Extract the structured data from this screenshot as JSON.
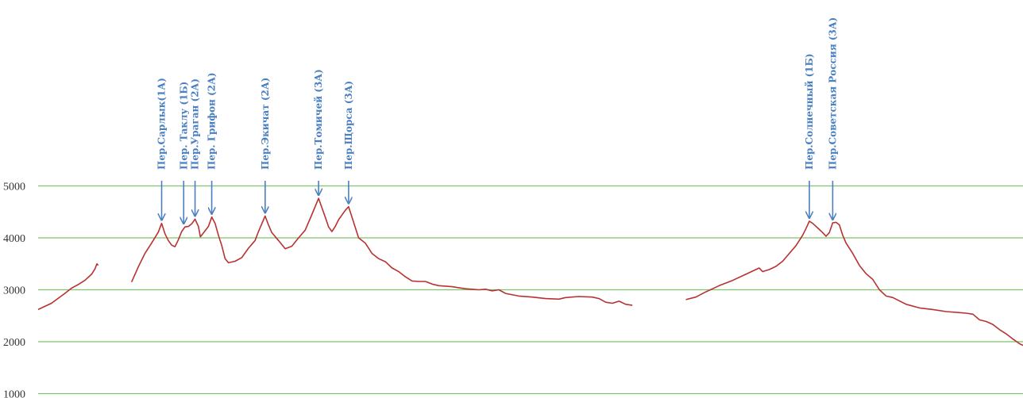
{
  "chart_data": {
    "type": "line",
    "title": "",
    "xlabel": "",
    "ylabel": "",
    "ylim": [
      1000,
      5000
    ],
    "grid": true,
    "legend": "none",
    "y_ticks": [
      "5000",
      "4000",
      "3000",
      "2000",
      "1000"
    ],
    "grid_color": "#7dc36b",
    "line_color": "#b83232",
    "annotation_color": "#4a7fc0",
    "series": [
      {
        "segments": [
          [
            [
              0,
              2620
            ],
            [
              20,
              2740
            ],
            [
              40,
              2930
            ],
            [
              50,
              3030
            ],
            [
              60,
              3100
            ],
            [
              70,
              3180
            ],
            [
              80,
              3300
            ],
            [
              85,
              3400
            ],
            [
              88,
              3500
            ],
            [
              90,
              3470
            ]
          ],
          [
            [
              140,
              3150
            ],
            [
              150,
              3440
            ],
            [
              160,
              3700
            ],
            [
              170,
              3900
            ],
            [
              180,
              4110
            ],
            [
              185,
              4280
            ],
            [
              190,
              4080
            ],
            [
              195,
              3950
            ],
            [
              200,
              3860
            ],
            [
              205,
              3830
            ],
            [
              210,
              3960
            ],
            [
              215,
              4120
            ],
            [
              220,
              4210
            ],
            [
              225,
              4220
            ],
            [
              230,
              4270
            ],
            [
              235,
              4360
            ],
            [
              240,
              4220
            ],
            [
              243,
              4020
            ],
            [
              248,
              4100
            ],
            [
              255,
              4220
            ],
            [
              260,
              4400
            ],
            [
              265,
              4280
            ],
            [
              270,
              4050
            ],
            [
              275,
              3850
            ],
            [
              280,
              3600
            ],
            [
              285,
              3520
            ],
            [
              295,
              3550
            ],
            [
              305,
              3620
            ],
            [
              315,
              3800
            ],
            [
              325,
              3950
            ],
            [
              330,
              4120
            ],
            [
              335,
              4270
            ],
            [
              340,
              4420
            ],
            [
              345,
              4250
            ],
            [
              350,
              4100
            ],
            [
              360,
              3950
            ],
            [
              370,
              3790
            ],
            [
              380,
              3840
            ],
            [
              390,
              4000
            ],
            [
              400,
              4150
            ],
            [
              410,
              4450
            ],
            [
              420,
              4760
            ],
            [
              425,
              4580
            ],
            [
              430,
              4400
            ],
            [
              435,
              4210
            ],
            [
              440,
              4120
            ],
            [
              445,
              4220
            ],
            [
              450,
              4350
            ],
            [
              460,
              4530
            ],
            [
              465,
              4600
            ],
            [
              470,
              4400
            ],
            [
              475,
              4200
            ],
            [
              480,
              4000
            ],
            [
              490,
              3900
            ],
            [
              500,
              3700
            ],
            [
              510,
              3600
            ],
            [
              520,
              3540
            ],
            [
              530,
              3420
            ],
            [
              540,
              3350
            ],
            [
              550,
              3250
            ],
            [
              560,
              3170
            ],
            [
              570,
              3160
            ],
            [
              580,
              3160
            ],
            [
              590,
              3110
            ],
            [
              600,
              3080
            ],
            [
              610,
              3070
            ],
            [
              620,
              3060
            ],
            [
              630,
              3040
            ],
            [
              640,
              3020
            ],
            [
              650,
              3010
            ],
            [
              660,
              3000
            ],
            [
              670,
              3010
            ],
            [
              680,
              2980
            ],
            [
              690,
              3000
            ],
            [
              700,
              2930
            ],
            [
              720,
              2880
            ],
            [
              740,
              2860
            ],
            [
              760,
              2830
            ],
            [
              780,
              2820
            ],
            [
              790,
              2850
            ],
            [
              810,
              2870
            ],
            [
              830,
              2860
            ],
            [
              840,
              2830
            ],
            [
              850,
              2760
            ],
            [
              860,
              2740
            ],
            [
              870,
              2780
            ],
            [
              880,
              2720
            ],
            [
              890,
              2700
            ]
          ],
          [
            [
              970,
              2810
            ],
            [
              985,
              2860
            ],
            [
              1000,
              2960
            ],
            [
              1020,
              3080
            ],
            [
              1040,
              3180
            ],
            [
              1060,
              3300
            ],
            [
              1080,
              3420
            ],
            [
              1085,
              3350
            ],
            [
              1095,
              3390
            ],
            [
              1105,
              3450
            ],
            [
              1115,
              3550
            ],
            [
              1125,
              3700
            ],
            [
              1135,
              3850
            ],
            [
              1145,
              4050
            ],
            [
              1150,
              4180
            ],
            [
              1155,
              4320
            ],
            [
              1160,
              4280
            ],
            [
              1165,
              4220
            ],
            [
              1170,
              4160
            ],
            [
              1175,
              4100
            ],
            [
              1180,
              4030
            ],
            [
              1185,
              4100
            ],
            [
              1190,
              4290
            ],
            [
              1195,
              4300
            ],
            [
              1200,
              4250
            ],
            [
              1205,
              4050
            ],
            [
              1210,
              3900
            ],
            [
              1220,
              3700
            ],
            [
              1230,
              3470
            ],
            [
              1240,
              3310
            ],
            [
              1250,
              3200
            ],
            [
              1260,
              3000
            ],
            [
              1270,
              2880
            ],
            [
              1280,
              2850
            ],
            [
              1300,
              2720
            ],
            [
              1320,
              2650
            ],
            [
              1340,
              2620
            ],
            [
              1360,
              2580
            ],
            [
              1380,
              2560
            ],
            [
              1390,
              2550
            ],
            [
              1400,
              2530
            ],
            [
              1410,
              2420
            ],
            [
              1420,
              2390
            ],
            [
              1430,
              2330
            ],
            [
              1440,
              2230
            ],
            [
              1450,
              2150
            ],
            [
              1460,
              2050
            ],
            [
              1470,
              1960
            ],
            [
              1475,
              1930
            ]
          ]
        ]
      }
    ],
    "annotations": [
      {
        "text": "Пер.Сарлык(1А)",
        "x": 185,
        "y": 4280
      },
      {
        "text": "Пер. Таклу (1Б)",
        "x": 218,
        "y": 4210
      },
      {
        "text": "Пер.Ураган (2А)",
        "x": 235,
        "y": 4360
      },
      {
        "text": "Пер. Грифон (2А)",
        "x": 260,
        "y": 4400
      },
      {
        "text": "Пер.Экичат (2А)",
        "x": 340,
        "y": 4420
      },
      {
        "text": "Пер.Томичей (3А)",
        "x": 420,
        "y": 4760
      },
      {
        "text": "Пер.Щорса (3А)",
        "x": 465,
        "y": 4600
      },
      {
        "text": "Пер.Солнечный (1Б)",
        "x": 1155,
        "y": 4320
      },
      {
        "text": "Пер.Советская Россия (3А)",
        "x": 1190,
        "y": 4290
      }
    ]
  }
}
